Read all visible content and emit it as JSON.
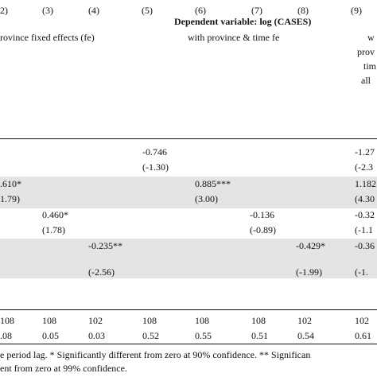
{
  "header": {
    "col_numbers": [
      "2)",
      "(3)",
      "(4)",
      "(5)",
      "(6)",
      "(7)",
      "(8)",
      "(9)"
    ],
    "dependent_variable": "Dependent variable: log (CASES)",
    "group_province_fe": "rovince fixed effects (fe)",
    "group_province_time_fe": "with province & time fe",
    "col9_lines": [
      "w",
      "prov",
      "tim",
      "all"
    ]
  },
  "rows": {
    "r1": {
      "c5": "-0.746",
      "c5_t": "(-1.30)",
      "c9": "-1.27",
      "c9_t": "(-2.3"
    },
    "r2": {
      "c2": ".610*",
      "c2_t": "1.79)",
      "c6": "0.885***",
      "c6_t": "(3.00)",
      "c9": "1.182",
      "c9_t": "(4.30"
    },
    "r3": {
      "c3": "0.460*",
      "c3_t": "(1.78)",
      "c7": "-0.136",
      "c7_t": "(-0.89)",
      "c9": "-0.32",
      "c9_t": "(-1.1"
    },
    "r4": {
      "c4": "-0.235**",
      "c4_t": "(-2.56)",
      "c8": "-0.429*",
      "c8_t": "(-1.99)",
      "c9": "-0.36",
      "c9_t": "(-1."
    },
    "obs": [
      "108",
      "108",
      "102",
      "108",
      "108",
      "108",
      "102",
      "102"
    ],
    "r2_values": [
      ".08",
      "0.05",
      "0.03",
      "0.52",
      "0.55",
      "0.51",
      "0.54",
      "0.61"
    ]
  },
  "notes": {
    "line1": "e period lag. * Significantly different from zero at 90% confidence. ** Significan",
    "line2": "ent from zero at 99% confidence."
  }
}
